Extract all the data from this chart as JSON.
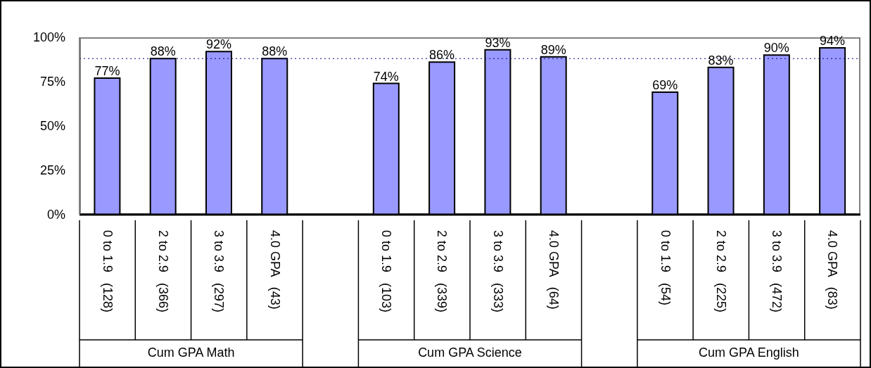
{
  "chart_data": {
    "type": "bar",
    "categories": [
      "0 to 1.9   (128)",
      "2 to 2.9   (366)",
      "3 to 3.9   (297)",
      "4.0 GPA   (43)",
      null,
      "0 to 1.9   (103)",
      "2 to 2.9   (339)",
      "3 to 3.9   (333)",
      "4.0 GPA   (64)",
      null,
      "0 to 1.9   (54)",
      "2 to 2.9   (225)",
      "3 to 3.9   (472)",
      "4.0 GPA   (83)"
    ],
    "values": [
      77,
      88,
      92,
      88,
      null,
      74,
      86,
      93,
      89,
      null,
      69,
      83,
      90,
      94
    ],
    "value_labels": [
      "77%",
      "88%",
      "92%",
      "88%",
      null,
      "74%",
      "86%",
      "93%",
      "89%",
      null,
      "69%",
      "83%",
      "90%",
      "94%"
    ],
    "color": "#9999ff",
    "ylim": [
      0,
      100
    ],
    "yticks": [
      {
        "value": 0,
        "label": "0%"
      },
      {
        "value": 25,
        "label": "25%"
      },
      {
        "value": 50,
        "label": "50%"
      },
      {
        "value": 75,
        "label": "75%"
      },
      {
        "value": 100,
        "label": "100%"
      }
    ],
    "ref_lines": [
      {
        "axis": "y",
        "value": 88,
        "color": "#000080",
        "line_style": "dotted"
      }
    ],
    "annotations": [
      "Cum GPA Math",
      "Cum GPA Science",
      "Cum GPA English"
    ]
  }
}
